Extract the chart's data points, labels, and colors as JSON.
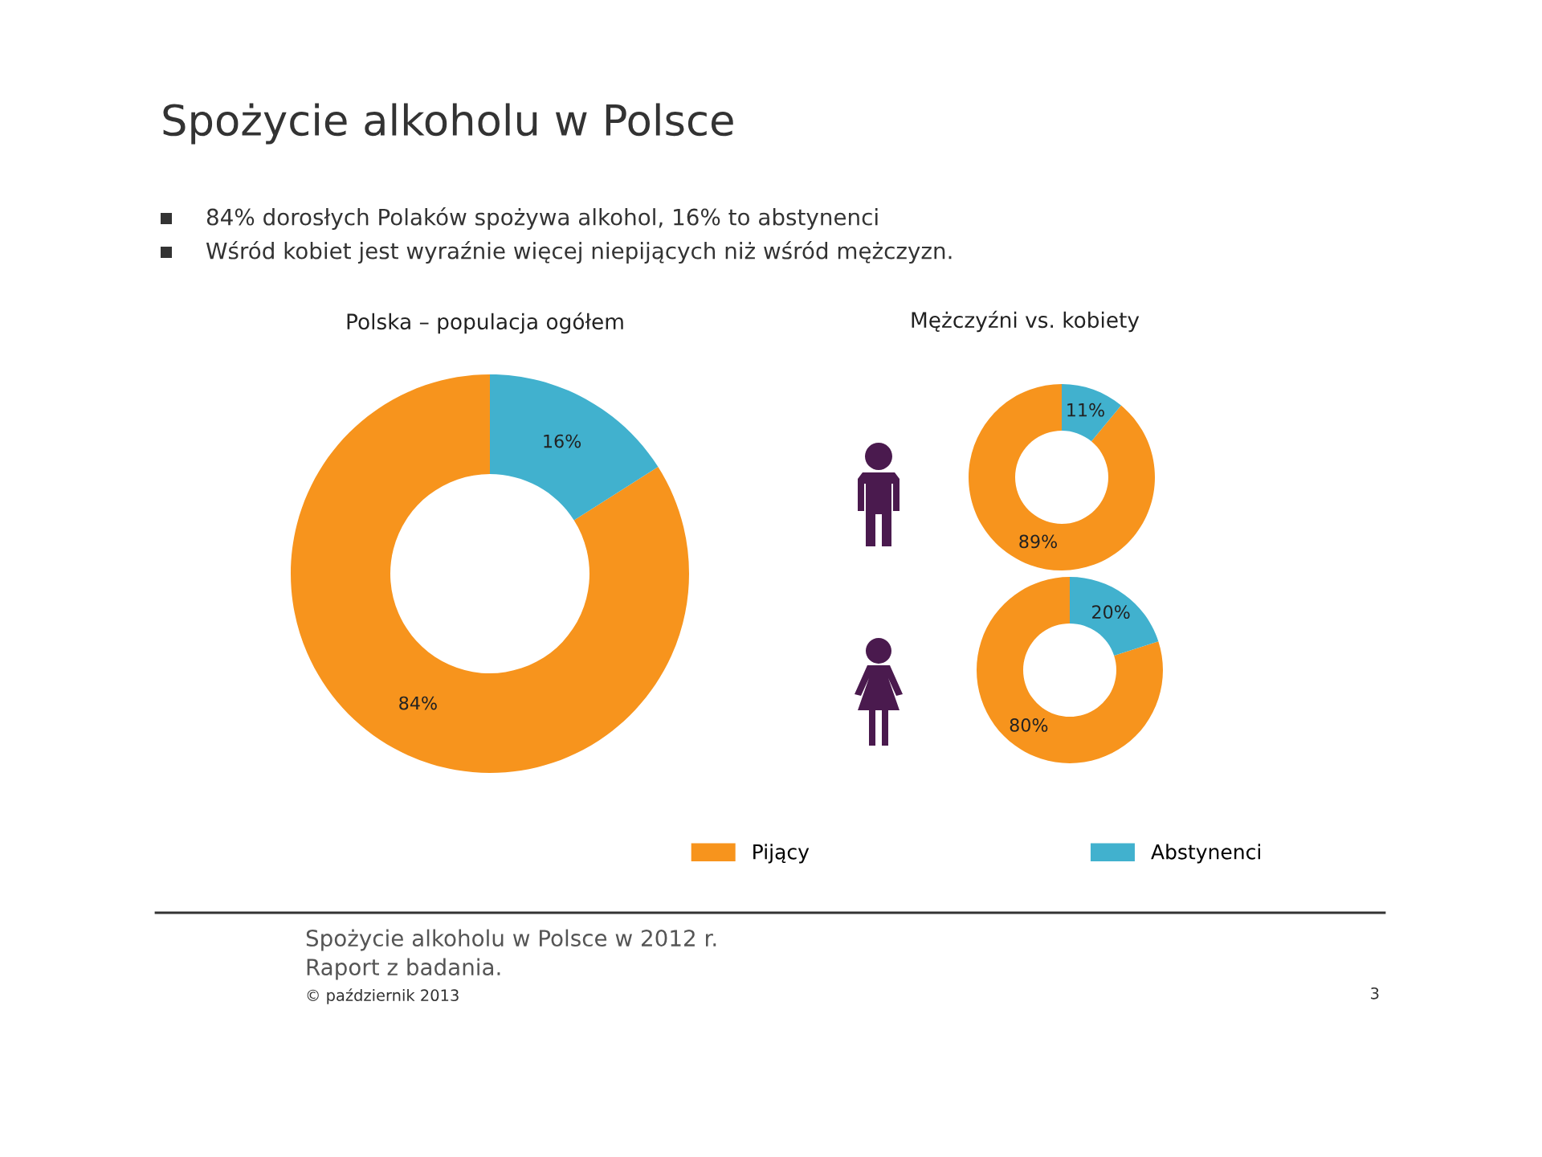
{
  "chart_data": [
    {
      "type": "donut",
      "title": "Polska – populacja ogółem",
      "categories": [
        "Pijący",
        "Abstynenci"
      ],
      "values": [
        84,
        16
      ],
      "colors": [
        "#f7941d",
        "#41b1ce"
      ],
      "value_labels": [
        "84%",
        "16%"
      ],
      "legend": "bottom",
      "annotations": [
        "Spożycie alkoholu w Polsce",
        "84% dorosłych Polaków spożywa alkohol, 16% to abstynenci",
        "Wśród kobiet jest wyraźnie więcej niepijących niż wśród mężczyzn.",
        "Spożycie alkoholu w Polsce w 2012 r.",
        "Raport z badania.",
        "© październik 2013",
        "3"
      ]
    },
    {
      "type": "donut",
      "title": "Mężczyźni vs. kobiety",
      "categories": [
        null,
        null
      ],
      "values": [
        89,
        11
      ],
      "colors": [
        "#f7941d",
        "#41b1ce"
      ],
      "value_labels": [
        "89%",
        "11%"
      ]
    },
    {
      "type": "donut",
      "categories": [
        null,
        null
      ],
      "values": [
        80,
        20
      ],
      "colors": [
        "#f7941d",
        "#41b1ce"
      ],
      "value_labels": [
        "80%",
        "20%"
      ]
    }
  ]
}
